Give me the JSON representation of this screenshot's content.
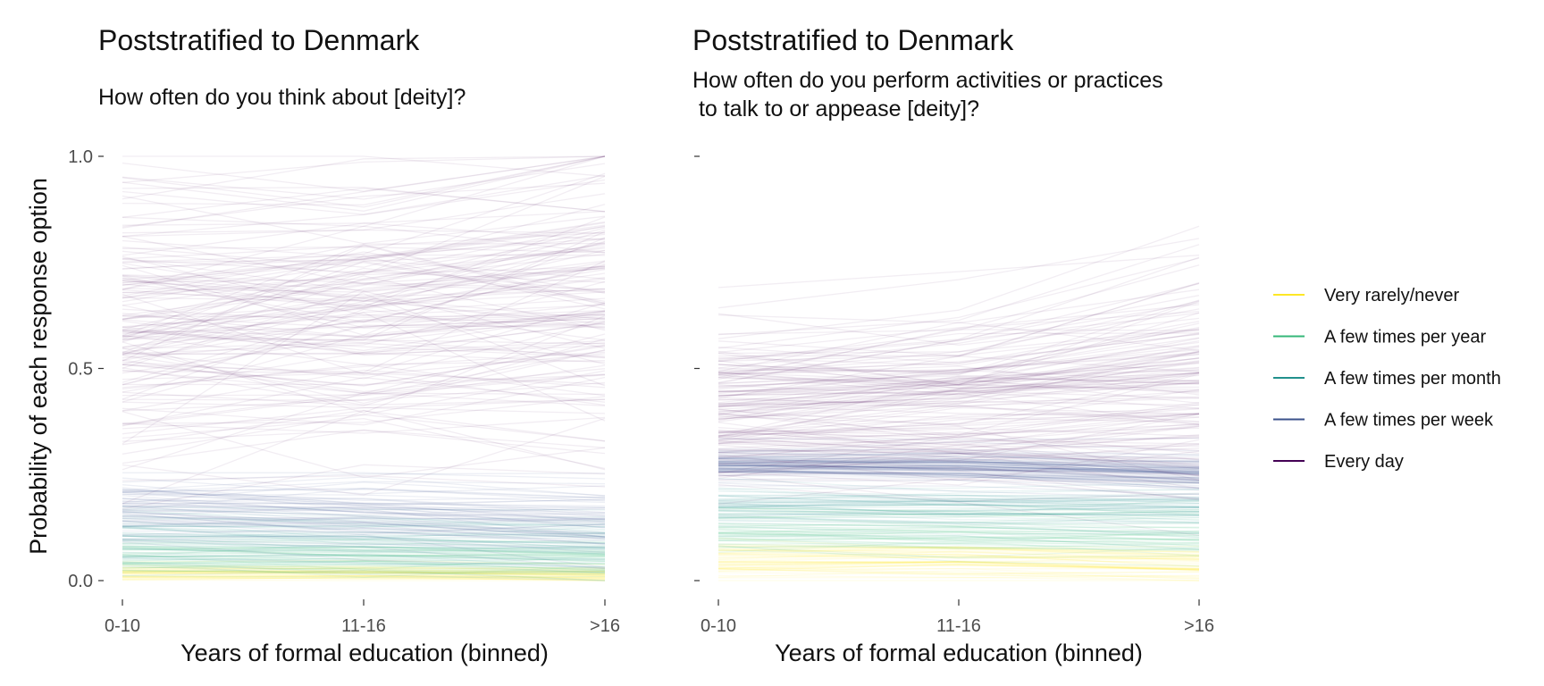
{
  "chart_data": [
    {
      "type": "line",
      "title": "Poststratified to Denmark",
      "subtitle": [
        "How often do you think about [deity]?"
      ],
      "xlabel": "Years of formal education (binned)",
      "ylabel": "Probability of each response option",
      "categories": [
        "0-10",
        "11-16",
        ">16"
      ],
      "yticks": [
        "0.0",
        "0.5",
        "1.0"
      ],
      "ylim": [
        0,
        1
      ],
      "grid": false,
      "series": [
        {
          "name": "Very rarely/never",
          "color": "#FDE725",
          "values": [
            0.02,
            0.02,
            0.015
          ],
          "spread": [
            0.012,
            0.012,
            0.012
          ],
          "draws": 40
        },
        {
          "name": "A few times per year",
          "color": "#35B779",
          "values": [
            0.06,
            0.055,
            0.05
          ],
          "spread": [
            0.03,
            0.03,
            0.03
          ],
          "draws": 50
        },
        {
          "name": "A few times per month",
          "color": "#21908C",
          "values": [
            0.1,
            0.09,
            0.08
          ],
          "spread": [
            0.04,
            0.04,
            0.04
          ],
          "draws": 50
        },
        {
          "name": "A few times per week",
          "color": "#3B528B",
          "values": [
            0.17,
            0.16,
            0.14
          ],
          "spread": [
            0.05,
            0.05,
            0.06
          ],
          "draws": 60
        },
        {
          "name": "Every day",
          "color": "#440154",
          "values": [
            0.62,
            0.64,
            0.68
          ],
          "spread": [
            0.2,
            0.2,
            0.24
          ],
          "draws": 160
        }
      ]
    },
    {
      "type": "line",
      "title": "Poststratified to Denmark",
      "subtitle": [
        "How often do you perform activities or practices",
        " to talk to or appease [deity]?"
      ],
      "xlabel": "Years of formal education (binned)",
      "ylabel": "",
      "categories": [
        "0-10",
        "11-16",
        ">16"
      ],
      "yticks": [
        "",
        "",
        ""
      ],
      "ylim": [
        0,
        1
      ],
      "grid": false,
      "series": [
        {
          "name": "Very rarely/never",
          "color": "#FDE725",
          "values": [
            0.05,
            0.05,
            0.04
          ],
          "spread": [
            0.025,
            0.025,
            0.025
          ],
          "draws": 50
        },
        {
          "name": "A few times per year",
          "color": "#35B779",
          "values": [
            0.11,
            0.105,
            0.1
          ],
          "spread": [
            0.035,
            0.035,
            0.04
          ],
          "draws": 50
        },
        {
          "name": "A few times per month",
          "color": "#21908C",
          "values": [
            0.17,
            0.165,
            0.16
          ],
          "spread": [
            0.03,
            0.03,
            0.035
          ],
          "draws": 50
        },
        {
          "name": "A few times per week",
          "color": "#3B528B",
          "values": [
            0.28,
            0.275,
            0.26
          ],
          "spread": [
            0.025,
            0.025,
            0.03
          ],
          "draws": 80
        },
        {
          "name": "Every day",
          "color": "#440154",
          "values": [
            0.42,
            0.44,
            0.48
          ],
          "spread": [
            0.12,
            0.12,
            0.16
          ],
          "draws": 150
        }
      ]
    }
  ],
  "legend": {
    "placement": "right",
    "items": [
      {
        "label": "Very rarely/never",
        "color": "#FDE725"
      },
      {
        "label": "A few times per year",
        "color": "#35B779"
      },
      {
        "label": "A few times per month",
        "color": "#21908C"
      },
      {
        "label": "A few times per week",
        "color": "#3B528B"
      },
      {
        "label": "Every day",
        "color": "#440154"
      }
    ]
  }
}
